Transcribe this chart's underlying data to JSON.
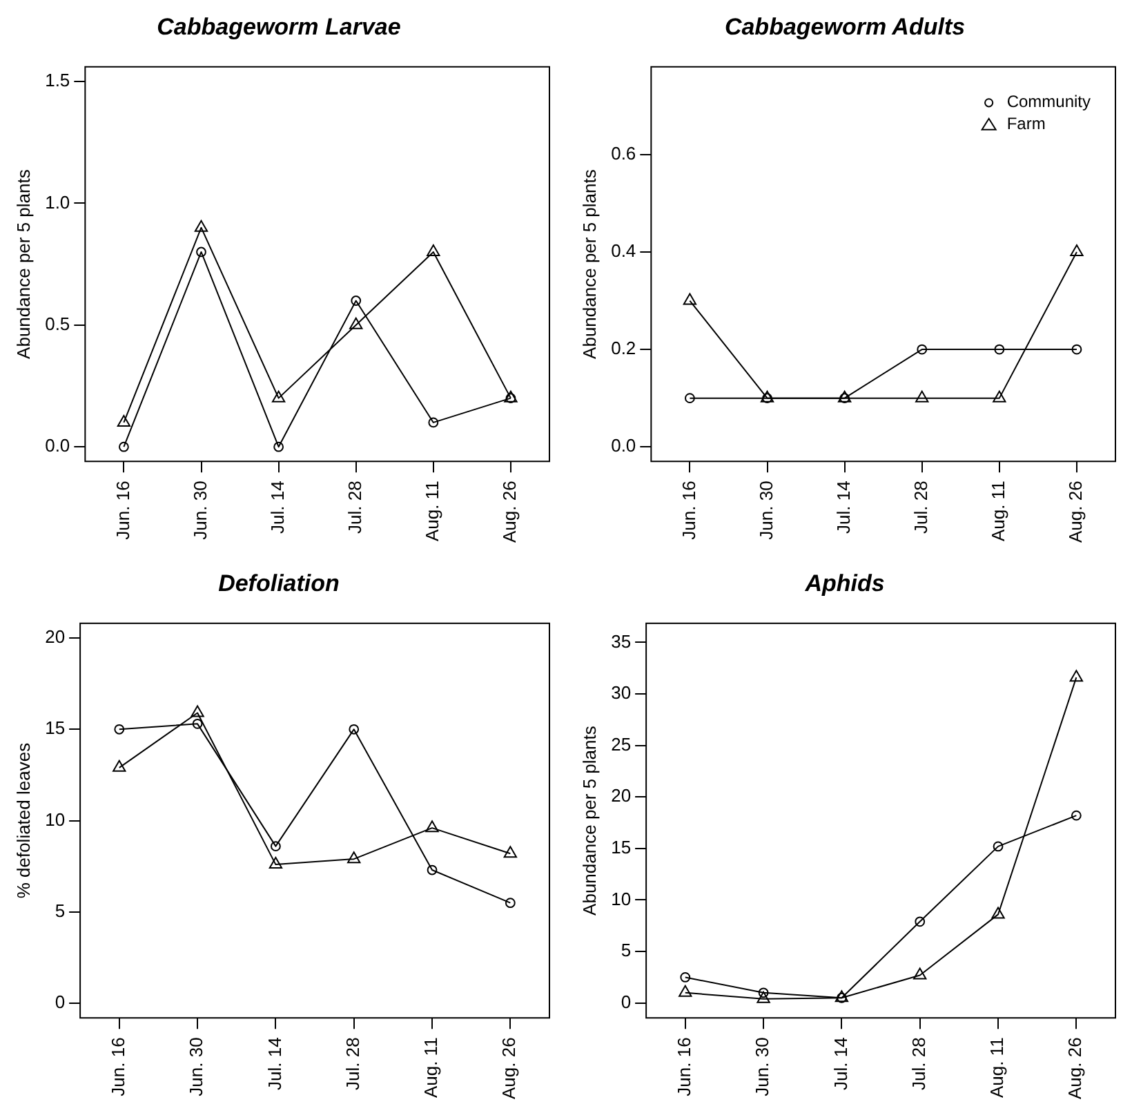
{
  "chart_data": [
    {
      "type": "line",
      "title": "Cabbageworm Larvae",
      "ylabel": "Abundance per 5 plants",
      "categories": [
        "Jun. 16",
        "Jun. 30",
        "Jul. 14",
        "Jul. 28",
        "Aug. 11",
        "Aug. 26"
      ],
      "ylim": [
        -0.06,
        1.56
      ],
      "yticks": [
        {
          "value": 0,
          "label": "0.0"
        },
        {
          "value": 0.5,
          "label": "0.5"
        },
        {
          "value": 1,
          "label": "1.0"
        },
        {
          "value": 1.5,
          "label": "1.5"
        }
      ],
      "grid": false,
      "legend": false,
      "line_style": "solid",
      "series": [
        {
          "color": "#000000",
          "marker": "circle",
          "values": [
            0,
            0.8,
            0,
            0.6,
            0.1,
            0.2
          ]
        },
        {
          "color": "#000000",
          "marker": "triangle",
          "values": [
            0.1,
            0.9,
            0.2,
            0.5,
            0.8,
            0.2
          ]
        }
      ]
    },
    {
      "type": "line",
      "title": "Cabbageworm Adults",
      "ylabel": "Abundance per 5 plants",
      "categories": [
        "Jun. 16",
        "Jun. 30",
        "Jul. 14",
        "Jul. 28",
        "Aug. 11",
        "Aug. 26"
      ],
      "ylim": [
        -0.03,
        0.78
      ],
      "yticks": [
        {
          "value": 0,
          "label": "0.0"
        },
        {
          "value": 0.2,
          "label": "0.2"
        },
        {
          "value": 0.4,
          "label": "0.4"
        },
        {
          "value": 0.6,
          "label": "0.6"
        }
      ],
      "grid": false,
      "legend": "top right",
      "line_style": "solid",
      "series": [
        {
          "name": "Community",
          "color": "#000000",
          "marker": "circle",
          "values": [
            0.1,
            0.1,
            0.1,
            0.2,
            0.2,
            0.2
          ]
        },
        {
          "name": "Farm",
          "color": "#000000",
          "marker": "triangle",
          "values": [
            0.3,
            0.1,
            0.1,
            0.1,
            0.1,
            0.4
          ]
        }
      ]
    },
    {
      "type": "line",
      "title": "Defoliation",
      "ylabel": "% defoliated leaves",
      "categories": [
        "Jun. 16",
        "Jun. 30",
        "Jul. 14",
        "Jul. 28",
        "Aug. 11",
        "Aug. 26"
      ],
      "ylim": [
        -0.8,
        20.8
      ],
      "yticks": [
        0,
        5,
        10,
        15,
        20
      ],
      "grid": false,
      "legend": false,
      "line_style": "solid",
      "series": [
        {
          "color": "#000000",
          "marker": "circle",
          "values": [
            15,
            15.3,
            8.6,
            15,
            7.3,
            5.5
          ]
        },
        {
          "color": "#000000",
          "marker": "triangle",
          "values": [
            12.9,
            15.9,
            7.6,
            7.9,
            9.6,
            8.2
          ]
        }
      ]
    },
    {
      "type": "line",
      "title": "Aphids",
      "ylabel": "Abundance per 5 plants",
      "categories": [
        "Jun. 16",
        "Jun. 30",
        "Jul. 14",
        "Jul. 28",
        "Aug. 11",
        "Aug. 26"
      ],
      "ylim": [
        -1.45,
        36.85
      ],
      "yticks": [
        0,
        5,
        10,
        15,
        20,
        25,
        30,
        35
      ],
      "grid": false,
      "legend": false,
      "line_style": "solid",
      "series": [
        {
          "color": "#000000",
          "marker": "circle",
          "values": [
            2.5,
            1.0,
            0.5,
            7.9,
            15.2,
            18.2
          ]
        },
        {
          "color": "#000000",
          "marker": "triangle",
          "values": [
            1.0,
            0.4,
            0.5,
            2.7,
            8.6,
            31.6
          ]
        }
      ]
    }
  ]
}
